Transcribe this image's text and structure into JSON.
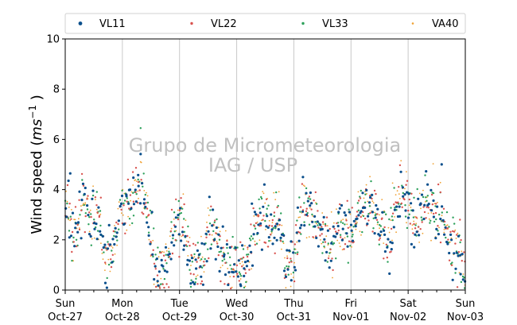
{
  "chart_data": {
    "type": "scatter",
    "title": "",
    "ylabel_prefix": "Wind speed (",
    "ylabel_unit": "ms",
    "ylabel_exp": "−1",
    "ylabel_suffix": " )",
    "ylim": [
      0,
      10
    ],
    "yticks": [
      "0",
      "2",
      "4",
      "6",
      "8",
      "10"
    ],
    "x_range_days": [
      0,
      7
    ],
    "xticks": [
      {
        "day": "Sun",
        "date": "Oct-27"
      },
      {
        "day": "Mon",
        "date": "Oct-28"
      },
      {
        "day": "Tue",
        "date": "Oct-29"
      },
      {
        "day": "Wed",
        "date": "Oct-30"
      },
      {
        "day": "Thu",
        "date": "Oct-31"
      },
      {
        "day": "Fri",
        "date": "Nov-01"
      },
      {
        "day": "Sat",
        "date": "Nov-02"
      },
      {
        "day": "Sun",
        "date": "Nov-03"
      }
    ],
    "grid": "vertical-major",
    "legend_position": "top",
    "series": [
      {
        "name": "VL11",
        "color": "#0a4f8c"
      },
      {
        "name": "VL22",
        "color": "#d9534f"
      },
      {
        "name": "VL33",
        "color": "#2ca05a"
      },
      {
        "name": "VA40",
        "color": "#f0a030"
      }
    ],
    "trend": [
      [
        0.0,
        3.6
      ],
      [
        0.15,
        2.0
      ],
      [
        0.3,
        3.6
      ],
      [
        0.45,
        2.6
      ],
      [
        0.55,
        3.4
      ],
      [
        0.7,
        1.2
      ],
      [
        0.8,
        1.4
      ],
      [
        0.95,
        3.0
      ],
      [
        1.1,
        3.6
      ],
      [
        1.3,
        4.3
      ],
      [
        1.45,
        3.0
      ],
      [
        1.6,
        0.8
      ],
      [
        1.75,
        1.0
      ],
      [
        1.95,
        2.5
      ],
      [
        2.05,
        3.0
      ],
      [
        2.2,
        0.9
      ],
      [
        2.4,
        0.8
      ],
      [
        2.55,
        2.8
      ],
      [
        2.75,
        1.2
      ],
      [
        2.95,
        0.9
      ],
      [
        3.15,
        0.9
      ],
      [
        3.3,
        2.5
      ],
      [
        3.5,
        3.0
      ],
      [
        3.65,
        2.5
      ],
      [
        3.75,
        2.8
      ],
      [
        3.85,
        1.0
      ],
      [
        4.0,
        1.0
      ],
      [
        4.15,
        3.5
      ],
      [
        4.3,
        3.0
      ],
      [
        4.5,
        2.3
      ],
      [
        4.65,
        1.8
      ],
      [
        4.8,
        2.5
      ],
      [
        5.0,
        2.2
      ],
      [
        5.2,
        3.2
      ],
      [
        5.35,
        3.5
      ],
      [
        5.5,
        3.0
      ],
      [
        5.65,
        1.8
      ],
      [
        5.8,
        3.6
      ],
      [
        5.95,
        4.0
      ],
      [
        6.1,
        2.6
      ],
      [
        6.3,
        3.6
      ],
      [
        6.45,
        3.0
      ],
      [
        6.6,
        3.0
      ],
      [
        6.75,
        1.8
      ],
      [
        6.9,
        1.4
      ],
      [
        7.0,
        0.5
      ]
    ]
  },
  "watermark": {
    "line1": "Grupo de Micrometeorologia",
    "line2": "IAG / USP"
  }
}
